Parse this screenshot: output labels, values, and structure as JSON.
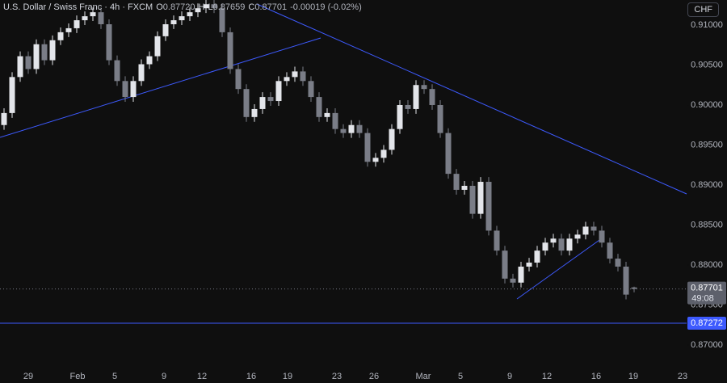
{
  "chart_data": {
    "type": "candlestick",
    "symbol": "U.S. Dollar / Swiss Franc · 4h · FXCM",
    "legend": [
      {
        "label": "O",
        "value": "0.87720"
      },
      {
        "label": "H"
      },
      {
        "label": "L",
        "value": "0.87659"
      },
      {
        "label": "C",
        "value": "0.87701"
      }
    ],
    "change": "-0.00019 (-0.02%)",
    "currency": "CHF",
    "countdown": "49:08",
    "up_color": "#e3e5ea",
    "down_color": "#7a7d87",
    "line_color": "#3d5afe",
    "open": [
      0.8975,
      0.899,
      0.9035,
      0.9061,
      0.9045,
      0.9076,
      0.9056,
      0.9081,
      0.9091,
      0.9096,
      0.9106,
      0.9111,
      0.9116,
      0.9101,
      0.9056,
      0.903,
      0.901,
      0.903,
      0.9051,
      0.9061,
      0.9086,
      0.9101,
      0.9106,
      0.9111,
      0.9116,
      0.9121,
      0.9126,
      0.9121,
      0.9091,
      0.9045,
      0.902,
      0.8985,
      0.8995,
      0.901,
      0.9005,
      0.903,
      0.9035,
      0.9042,
      0.903,
      0.901,
      0.8985,
      0.899,
      0.897,
      0.8965,
      0.8975,
      0.8965,
      0.8929,
      0.8934,
      0.8944,
      0.897,
      0.9,
      0.8995,
      0.9025,
      0.902,
      0.9,
      0.8965,
      0.8914,
      0.8894,
      0.8899,
      0.8864,
      0.8904,
      0.8843,
      0.8818,
      0.8783,
      0.8778,
      0.8798,
      0.8803,
      0.8818,
      0.8828,
      0.8833,
      0.8818,
      0.8833,
      0.8838,
      0.8848,
      0.8843,
      0.8828,
      0.8808,
      0.8798,
      0.8772
    ],
    "high": [
      0.8996,
      0.9041,
      0.9067,
      0.9067,
      0.9082,
      0.9082,
      0.9087,
      0.9097,
      0.9102,
      0.9112,
      0.9117,
      0.9122,
      0.9122,
      0.9107,
      0.9062,
      0.9036,
      0.9036,
      0.9057,
      0.9067,
      0.9092,
      0.9107,
      0.9112,
      0.9117,
      0.9122,
      0.9127,
      0.9132,
      0.9132,
      0.9127,
      0.9097,
      0.9051,
      0.9026,
      0.9001,
      0.9016,
      0.9016,
      0.9036,
      0.9041,
      0.9048,
      0.9048,
      0.9036,
      0.9016,
      0.8996,
      0.8996,
      0.8976,
      0.8981,
      0.8981,
      0.8971,
      0.894,
      0.895,
      0.8976,
      0.9006,
      0.9006,
      0.9031,
      0.9031,
      0.9026,
      0.9006,
      0.8971,
      0.892,
      0.8905,
      0.8905,
      0.891,
      0.891,
      0.8849,
      0.8824,
      0.8789,
      0.8804,
      0.8809,
      0.8824,
      0.8834,
      0.8839,
      0.8839,
      0.8839,
      0.8844,
      0.8854,
      0.8854,
      0.8849,
      0.8834,
      0.8814,
      0.8804,
      0.8773
    ],
    "low": [
      0.8969,
      0.8984,
      0.9029,
      0.9039,
      0.9039,
      0.905,
      0.905,
      0.9075,
      0.9085,
      0.909,
      0.91,
      0.9105,
      0.9095,
      0.905,
      0.9024,
      0.9004,
      0.9004,
      0.9024,
      0.9045,
      0.9055,
      0.908,
      0.9095,
      0.91,
      0.9105,
      0.911,
      0.9115,
      0.9115,
      0.9085,
      0.9039,
      0.9014,
      0.8979,
      0.8979,
      0.8989,
      0.8999,
      0.8999,
      0.9024,
      0.9029,
      0.9024,
      0.9004,
      0.8979,
      0.8979,
      0.8964,
      0.8959,
      0.8959,
      0.8959,
      0.8923,
      0.8923,
      0.8928,
      0.8938,
      0.8964,
      0.8989,
      0.8989,
      0.9014,
      0.8994,
      0.8959,
      0.8908,
      0.8888,
      0.8888,
      0.8858,
      0.8858,
      0.8837,
      0.8812,
      0.8777,
      0.8772,
      0.8772,
      0.8792,
      0.8797,
      0.8812,
      0.8822,
      0.8812,
      0.8812,
      0.8827,
      0.8832,
      0.8837,
      0.8822,
      0.8802,
      0.8792,
      0.8757,
      0.87659
    ],
    "close": [
      0.899,
      0.9035,
      0.9061,
      0.9045,
      0.9076,
      0.9056,
      0.9081,
      0.9091,
      0.9096,
      0.9106,
      0.9111,
      0.9116,
      0.9101,
      0.9056,
      0.903,
      0.901,
      0.903,
      0.9051,
      0.9061,
      0.9086,
      0.9101,
      0.9106,
      0.9111,
      0.9116,
      0.9121,
      0.9126,
      0.9121,
      0.9091,
      0.9045,
      0.902,
      0.8985,
      0.8995,
      0.901,
      0.9005,
      0.903,
      0.9035,
      0.9042,
      0.903,
      0.901,
      0.8985,
      0.899,
      0.897,
      0.8965,
      0.8975,
      0.8965,
      0.8929,
      0.8934,
      0.8944,
      0.897,
      0.9,
      0.8995,
      0.9025,
      0.902,
      0.9,
      0.8965,
      0.8914,
      0.8894,
      0.8899,
      0.8864,
      0.8904,
      0.8843,
      0.8818,
      0.8783,
      0.8778,
      0.8798,
      0.8803,
      0.8818,
      0.8828,
      0.8833,
      0.8818,
      0.8833,
      0.8838,
      0.8848,
      0.8843,
      0.8828,
      0.8808,
      0.8798,
      0.8763,
      0.87701
    ],
    "hline": 0.87272,
    "xlim": [
      0,
      85
    ],
    "xticks": [
      {
        "value": 3.5,
        "label": "29"
      },
      {
        "value": 9.6,
        "label": "Feb"
      },
      {
        "value": 14.2,
        "label": "5"
      },
      {
        "value": 20.3,
        "label": "9"
      },
      {
        "value": 25,
        "label": "12"
      },
      {
        "value": 31.1,
        "label": "16"
      },
      {
        "value": 35.6,
        "label": "19"
      },
      {
        "value": 41.7,
        "label": "23"
      },
      {
        "value": 46.3,
        "label": "26"
      },
      {
        "value": 52.4,
        "label": "Mar"
      },
      {
        "value": 57,
        "label": "5"
      },
      {
        "value": 63.1,
        "label": "9"
      },
      {
        "value": 67.7,
        "label": "12"
      },
      {
        "value": 73.8,
        "label": "16"
      },
      {
        "value": 78.4,
        "label": "19"
      },
      {
        "value": 84.5,
        "label": "23"
      }
    ],
    "ylim": [
      0.86717,
      0.91313
    ],
    "yticks": [
      {
        "value": 0.91,
        "label": "0.91000"
      },
      {
        "value": 0.905,
        "label": "0.90500"
      },
      {
        "value": 0.9,
        "label": "0.90000"
      },
      {
        "value": 0.895,
        "label": "0.89500"
      },
      {
        "value": 0.89,
        "label": "0.89000"
      },
      {
        "value": 0.885,
        "label": "0.88500"
      },
      {
        "value": 0.88,
        "label": "0.88000"
      },
      {
        "value": 0.875,
        "label": "0.87500"
      },
      {
        "value": 0.87,
        "label": "0.87000"
      }
    ]
  }
}
